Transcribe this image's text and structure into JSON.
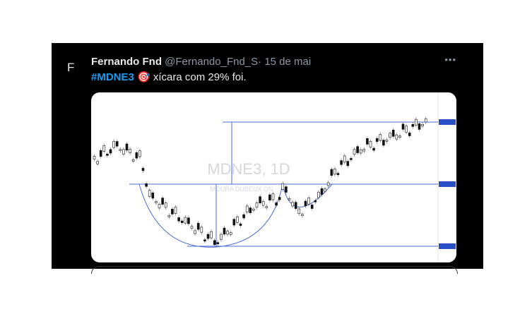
{
  "tweet": {
    "avatar": "F",
    "author": {
      "name": "Fernando Fnd",
      "handle": "@Fernando_Fnd_S",
      "separator": "·",
      "date": "15 de mai"
    },
    "menu": "•••",
    "text": {
      "hashtag": "#MDNE3",
      "emoji": "🎯",
      "body": "xícara com 29% foi."
    },
    "image": {
      "watermark": "MDNE3, 1D",
      "watermark_sub": "MOURA DUBEUX ON"
    }
  }
}
